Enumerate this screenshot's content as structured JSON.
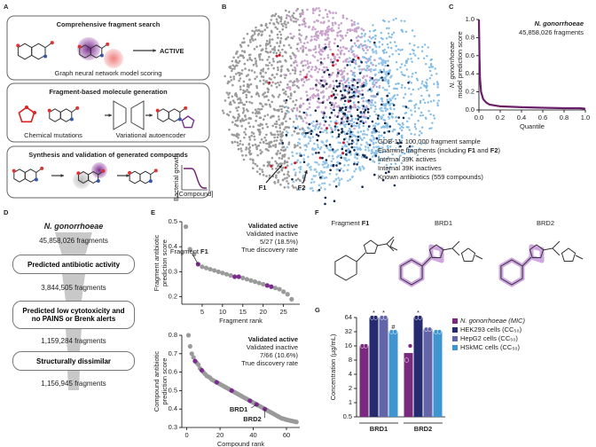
{
  "panel_labels": [
    "A",
    "B",
    "C",
    "D",
    "E",
    "F",
    "G"
  ],
  "panel_a": {
    "search": {
      "title": "Comprehensive fragment search",
      "result": "ACTIVE",
      "caption": "Graph neural network model scoring"
    },
    "generation": {
      "title": "Fragment-based molecule generation",
      "captions": [
        "Chemical mutations",
        "Variational autoencoder"
      ]
    },
    "synthesis": {
      "title": "Synthesis and validation of generated compounds",
      "y_label": "Bacterial growth",
      "x_label": "[Compound]"
    }
  },
  "panel_b": {
    "labels": [
      "F1",
      "F2"
    ],
    "legend": [
      {
        "parts": [
          "GDB-11: 100,000 fragment sample"
        ],
        "color": "#8c8c8c"
      },
      {
        "parts": [
          "Enamine fragments (including ",
          "F1",
          " and ",
          "F2",
          ")"
        ],
        "color": "#b56aae"
      },
      {
        "parts": [
          "Internal 39K actives"
        ],
        "color": "#1d4f8c"
      },
      {
        "parts": [
          "Internal 39K inactives"
        ],
        "color": "#4aa3d8"
      },
      {
        "parts": [
          "Known antibiotics (559 compounds)"
        ],
        "color": "#c4182a"
      }
    ]
  },
  "panel_d": {
    "organism": "N. gonorrhoeae",
    "counts": [
      "45,858,026 fragments",
      "3,844,505 fragments",
      "1,159,284 fragments",
      "1,156,945 fragments"
    ],
    "filters": [
      "Predicted antibiotic activity",
      "Predicted low cytotoxicity and no PAINS or Brenk alerts",
      "Structurally dissimilar"
    ]
  },
  "panel_f": {
    "fragment_label": [
      "Fragment ",
      "F1"
    ],
    "compounds": [
      "BRD1",
      "BRD2"
    ]
  },
  "chart_data": [
    {
      "type": "line",
      "y_label": [
        "N. gonorrhoeae",
        "model prediction score"
      ],
      "x_label": "Quantile",
      "annotation": [
        "N. gonorrhoeae",
        "45,858,026 fragments"
      ],
      "x": [
        0,
        0.005,
        0.01,
        0.02,
        0.04,
        0.07,
        0.1,
        0.2,
        0.4,
        0.6,
        0.8,
        0.95,
        0.99,
        1.0
      ],
      "values": [
        1.0,
        0.6,
        0.35,
        0.2,
        0.12,
        0.08,
        0.06,
        0.04,
        0.03,
        0.025,
        0.02,
        0.02,
        0.015,
        0.01
      ],
      "color": "#6b1f6b",
      "xlim": [
        0,
        1
      ],
      "ylim": [
        0,
        1
      ],
      "xticks": [
        {
          "value": 0,
          "label": "0.0"
        },
        {
          "value": 0.2,
          "label": "0.2"
        },
        {
          "value": 0.4,
          "label": "0.4"
        },
        {
          "value": 0.6,
          "label": "0.6"
        },
        {
          "value": 0.8,
          "label": "0.8"
        },
        {
          "value": 1,
          "label": "1.0"
        }
      ],
      "yticks": [
        {
          "value": 0,
          "label": "0.0"
        },
        {
          "value": 0.2,
          "label": "0.2"
        },
        {
          "value": 0.4,
          "label": "0.4"
        },
        {
          "value": 0.6,
          "label": "0.6"
        },
        {
          "value": 0.8,
          "label": "0.8"
        },
        {
          "value": 1,
          "label": "1.0"
        }
      ]
    },
    {
      "type": "scatter",
      "y_label": [
        "Fragment antibiotic",
        "prediction score"
      ],
      "x_label": "Fragment rank",
      "annotation": [
        "5/27 (18.5%)",
        "True discovery rate"
      ],
      "callouts": [
        [
          "Fragment ",
          "F1"
        ]
      ],
      "series": [
        {
          "name": "Validated active",
          "color": "#7b2d8e",
          "x": [
            4,
            13,
            14,
            21,
            22
          ],
          "values": [
            0.33,
            0.28,
            0.28,
            0.245,
            0.24
          ]
        },
        {
          "name": "Validated inactive",
          "color": "#9a9a9a",
          "x": [
            1,
            2,
            3,
            5,
            6,
            7,
            8,
            9,
            10,
            11,
            12,
            15,
            16,
            17,
            18,
            19,
            20,
            23,
            24,
            25,
            26,
            27
          ],
          "values": [
            0.48,
            0.39,
            0.37,
            0.32,
            0.315,
            0.31,
            0.305,
            0.3,
            0.295,
            0.29,
            0.285,
            0.275,
            0.27,
            0.265,
            0.26,
            0.255,
            0.25,
            0.235,
            0.23,
            0.22,
            0.21,
            0.19
          ]
        }
      ],
      "xlim": [
        0,
        29
      ],
      "ylim": [
        0.17,
        0.5
      ],
      "xticks": [
        5,
        10,
        15,
        20,
        25
      ],
      "yticks": [
        0.2,
        0.3,
        0.4,
        0.5
      ]
    },
    {
      "type": "scatter",
      "y_label": [
        "Compound antibiotic",
        "prediction score"
      ],
      "x_label": "Compound rank",
      "annotation": [
        "7/66 (10.6%)",
        "True discovery rate"
      ],
      "callouts": [
        [
          "BRD1"
        ],
        [
          "BRD2"
        ]
      ],
      "series": [
        {
          "name": "Validated active",
          "color": "#7b2d8e",
          "x": [
            5,
            9,
            18,
            27,
            38,
            42,
            47
          ],
          "values": [
            0.66,
            0.61,
            0.545,
            0.5,
            0.445,
            0.425,
            0.4
          ]
        },
        {
          "name": "Validated inactive",
          "color": "#9a9a9a",
          "x": [
            1,
            2,
            3,
            4,
            6,
            7,
            8,
            10,
            11,
            12,
            13,
            14,
            15,
            16,
            17,
            19,
            20,
            21,
            22,
            23,
            24,
            25,
            26,
            28,
            29,
            30,
            31,
            32,
            33,
            34,
            35,
            36,
            37,
            39,
            40,
            41,
            43,
            44,
            45,
            46,
            48,
            49,
            50,
            51,
            52,
            53,
            54,
            55,
            56,
            57,
            58,
            59,
            60,
            61,
            62,
            63,
            64,
            65,
            66
          ],
          "values": [
            0.8,
            0.74,
            0.7,
            0.68,
            0.65,
            0.64,
            0.62,
            0.6,
            0.59,
            0.58,
            0.575,
            0.57,
            0.56,
            0.555,
            0.55,
            0.54,
            0.535,
            0.53,
            0.525,
            0.52,
            0.515,
            0.51,
            0.505,
            0.495,
            0.49,
            0.485,
            0.48,
            0.475,
            0.47,
            0.465,
            0.46,
            0.455,
            0.45,
            0.44,
            0.435,
            0.43,
            0.42,
            0.415,
            0.41,
            0.405,
            0.395,
            0.39,
            0.385,
            0.38,
            0.375,
            0.37,
            0.365,
            0.36,
            0.355,
            0.35,
            0.348,
            0.345,
            0.342,
            0.34,
            0.338,
            0.336,
            0.334,
            0.332,
            0.33
          ]
        }
      ],
      "xlim": [
        -3,
        68
      ],
      "ylim": [
        0.3,
        0.8
      ],
      "xticks": [
        0,
        20,
        40,
        60
      ],
      "yticks": [
        0.3,
        0.4,
        0.5,
        0.6,
        0.7,
        0.8
      ]
    },
    {
      "type": "bar",
      "y_label": "Concentration (µg/mL)",
      "log_base": 2,
      "categories": [
        "BRD1",
        "BRD2"
      ],
      "series": [
        {
          "name": "N. gonorrhoeae (MIC)",
          "color": "#7a2a7e",
          "values": [
            16,
            11.3
          ],
          "replicates": [
            [
              16,
              16
            ],
            [
              8,
              16
            ]
          ]
        },
        {
          "name": "HEK293 cells (CC₅₀)",
          "color": "#262a6e",
          "values": [
            64,
            64
          ],
          "replicates": [
            [
              64,
              64
            ],
            [
              64,
              64
            ]
          ],
          "annotations": [
            "*",
            "*"
          ]
        },
        {
          "name": "HepG2 cells (CC₅₀)",
          "color": "#6266a8",
          "values": [
            64,
            36
          ],
          "replicates": [
            [
              64,
              64
            ],
            [
              36,
              36
            ]
          ],
          "annotations": [
            "*",
            null
          ]
        },
        {
          "name": "HSkMC cells (CC₅₀)",
          "color": "#3f95cf",
          "values": [
            32,
            32
          ],
          "replicates": [
            [
              32,
              32
            ],
            [
              32,
              32
            ]
          ],
          "annotations": [
            "#",
            null
          ]
        }
      ],
      "ylim": [
        0.5,
        64
      ],
      "yticks": [
        0.5,
        1,
        2,
        4,
        8,
        16,
        32,
        64
      ]
    }
  ]
}
